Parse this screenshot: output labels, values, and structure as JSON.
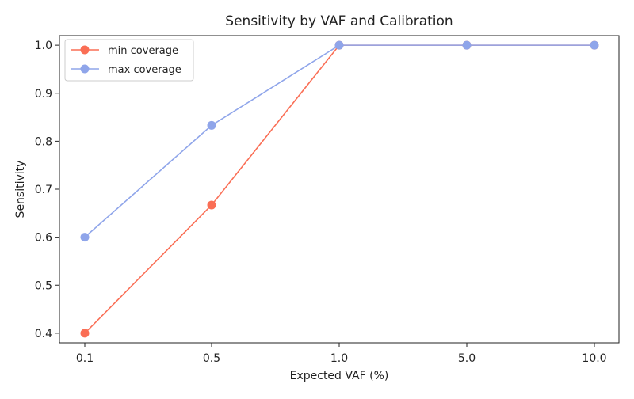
{
  "chart_data": {
    "type": "line",
    "title": "Sensitivity by VAF and Calibration",
    "xlabel": "Expected VAF (%)",
    "ylabel": "Sensitivity",
    "categories": [
      "0.1",
      "0.5",
      "1.0",
      "5.0",
      "10.0"
    ],
    "yticks": [
      "0.4",
      "0.5",
      "0.6",
      "0.7",
      "0.8",
      "0.9",
      "1.0"
    ],
    "ylim": [
      0.38,
      1.02
    ],
    "grid": false,
    "legend_position": "top-left",
    "series": [
      {
        "name": "min coverage",
        "color": "#fa6e55",
        "marker": "circle",
        "values": [
          0.4,
          0.667,
          1.0,
          1.0,
          1.0
        ]
      },
      {
        "name": "max coverage",
        "color": "#8fa5ea",
        "marker": "circle",
        "values": [
          0.6,
          0.833,
          1.0,
          1.0,
          1.0
        ]
      }
    ]
  }
}
